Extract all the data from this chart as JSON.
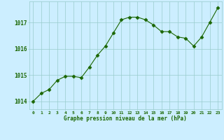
{
  "x": [
    0,
    1,
    2,
    3,
    4,
    5,
    6,
    7,
    8,
    9,
    10,
    11,
    12,
    13,
    14,
    15,
    16,
    17,
    18,
    19,
    20,
    21,
    22,
    23
  ],
  "y": [
    1014.0,
    1014.3,
    1014.45,
    1014.8,
    1014.95,
    1014.95,
    1014.9,
    1015.3,
    1015.75,
    1016.1,
    1016.6,
    1017.1,
    1017.2,
    1017.2,
    1017.1,
    1016.9,
    1016.65,
    1016.65,
    1016.45,
    1016.4,
    1016.1,
    1016.45,
    1017.0,
    1017.55
  ],
  "line_color": "#1a6600",
  "marker_color": "#1a6600",
  "bg_color": "#cceeff",
  "grid_color": "#99cccc",
  "title": "Graphe pression niveau de la mer (hPa)",
  "title_color": "#1a6600",
  "tick_color": "#1a6600",
  "ylim": [
    1013.7,
    1017.8
  ],
  "yticks": [
    1014,
    1015,
    1016,
    1017
  ],
  "xlim": [
    -0.5,
    23.5
  ],
  "xticks": [
    0,
    1,
    2,
    3,
    4,
    5,
    6,
    7,
    8,
    9,
    10,
    11,
    12,
    13,
    14,
    15,
    16,
    17,
    18,
    19,
    20,
    21,
    22,
    23
  ]
}
